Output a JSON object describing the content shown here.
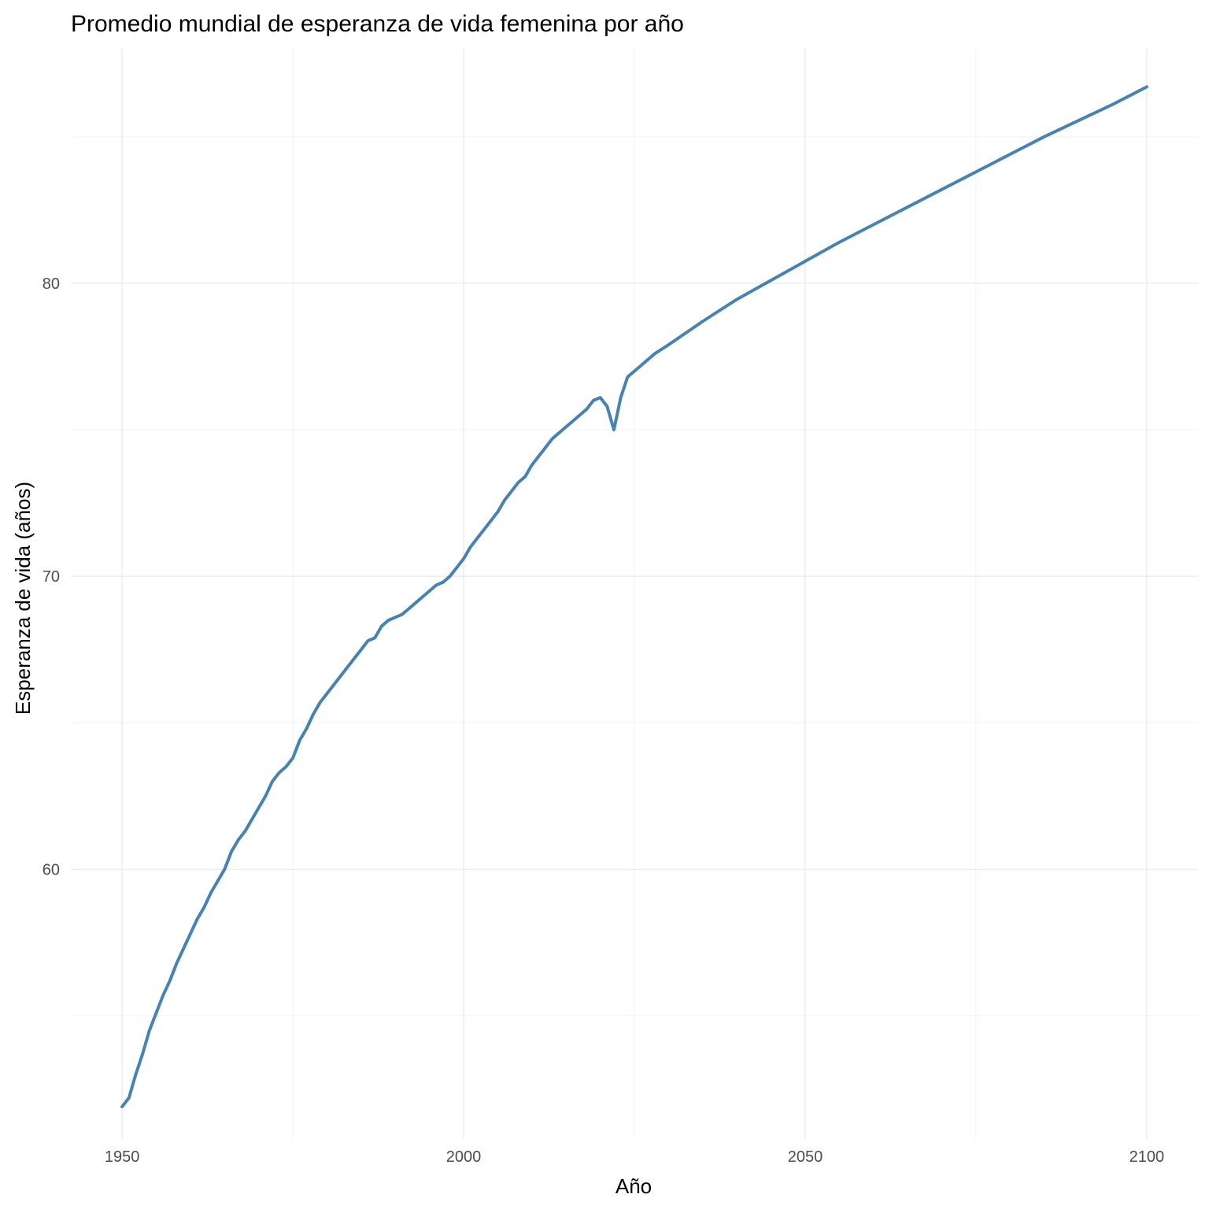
{
  "chart_data": {
    "type": "line",
    "title": "Promedio mundial de esperanza de vida femenina por año",
    "xlabel": "Año",
    "ylabel": "Esperanza de vida (años)",
    "xlim": [
      1942.5,
      2107.5
    ],
    "ylim": [
      50.8,
      88.0
    ],
    "x_ticks": [
      1950,
      2000,
      2050,
      2100
    ],
    "y_ticks": [
      60,
      70,
      80
    ],
    "x_minor_ticks": [
      1975,
      2025,
      2075
    ],
    "y_minor_ticks": [
      55,
      65,
      75,
      85
    ],
    "grid": true,
    "legend": "none",
    "color": "#4682b4",
    "series": [
      {
        "x": [
          1950,
          1951,
          1952,
          1953,
          1954,
          1955,
          1956,
          1957,
          1958,
          1959,
          1960,
          1961,
          1962,
          1963,
          1964,
          1965,
          1966,
          1967,
          1968,
          1969,
          1970,
          1971,
          1972,
          1973,
          1974,
          1975,
          1976,
          1977,
          1978,
          1979,
          1980,
          1981,
          1982,
          1983,
          1984,
          1985,
          1986,
          1987,
          1988,
          1989,
          1990,
          1991,
          1992,
          1993,
          1994,
          1995,
          1996,
          1997,
          1998,
          1999,
          2000,
          2001,
          2002,
          2003,
          2004,
          2005,
          2006,
          2007,
          2008,
          2009,
          2010,
          2011,
          2012,
          2013,
          2014,
          2015,
          2016,
          2017,
          2018,
          2019,
          2020,
          2021,
          2022,
          2023,
          2024,
          2025,
          2026,
          2027,
          2028,
          2029,
          2030,
          2035,
          2040,
          2045,
          2050,
          2055,
          2060,
          2065,
          2070,
          2075,
          2080,
          2085,
          2090,
          2095,
          2100
        ],
        "y": [
          51.9,
          52.2,
          53.0,
          53.7,
          54.5,
          55.1,
          55.7,
          56.2,
          56.8,
          57.3,
          57.8,
          58.3,
          58.7,
          59.2,
          59.6,
          60.0,
          60.6,
          61.0,
          61.3,
          61.7,
          62.1,
          62.5,
          63.0,
          63.3,
          63.5,
          63.8,
          64.4,
          64.8,
          65.3,
          65.7,
          66.0,
          66.3,
          66.6,
          66.9,
          67.2,
          67.5,
          67.8,
          67.9,
          68.3,
          68.5,
          68.6,
          68.7,
          68.9,
          69.1,
          69.3,
          69.5,
          69.7,
          69.8,
          70.0,
          70.3,
          70.6,
          71.0,
          71.3,
          71.6,
          71.9,
          72.2,
          72.6,
          72.9,
          73.2,
          73.4,
          73.8,
          74.1,
          74.4,
          74.7,
          74.9,
          75.1,
          75.3,
          75.5,
          75.7,
          76.0,
          76.1,
          75.8,
          75.0,
          76.1,
          76.8,
          77.0,
          77.2,
          77.4,
          77.6,
          77.75,
          77.9,
          78.7,
          79.45,
          80.1,
          80.75,
          81.4,
          82.0,
          82.6,
          83.2,
          83.8,
          84.4,
          85.0,
          85.55,
          86.1,
          86.7
        ]
      }
    ]
  }
}
